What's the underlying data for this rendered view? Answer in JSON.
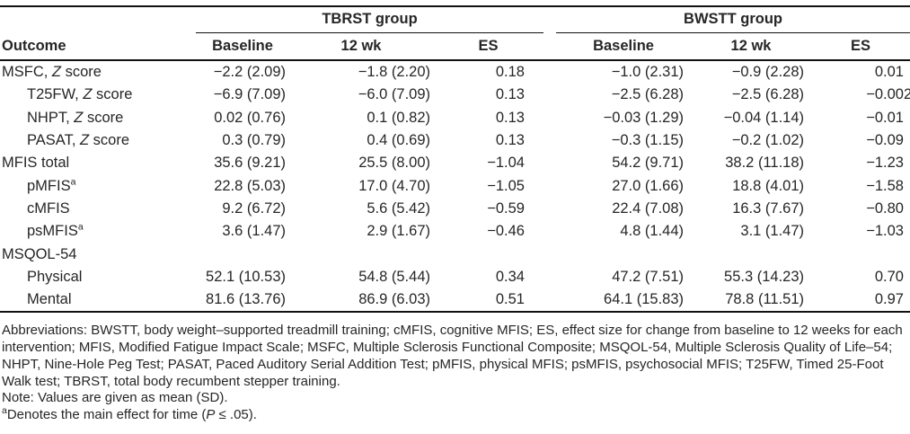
{
  "table": {
    "groups": [
      {
        "label": "TBRST group"
      },
      {
        "label": "BWSTT group"
      }
    ],
    "col_headers": {
      "outcome": "Outcome",
      "baseline": "Baseline",
      "wk12": "12 wk",
      "es": "ES"
    },
    "rows": [
      {
        "indent": false,
        "pre": "MSFC, ",
        "it": "Z",
        "post": " score",
        "sup": "",
        "cells": [
          "−2.2 (2.09)",
          "−1.8 (2.20)",
          "0.18",
          "−1.0 (2.31)",
          "−0.9 (2.28)",
          "0.01"
        ]
      },
      {
        "indent": true,
        "pre": "T25FW, ",
        "it": "Z",
        "post": " score",
        "sup": "",
        "cells": [
          "−6.9 (7.09)",
          "−6.0 (7.09)",
          "0.13",
          "−2.5 (6.28)",
          "−2.5 (6.28)",
          "−0.002"
        ]
      },
      {
        "indent": true,
        "pre": "NHPT, ",
        "it": "Z",
        "post": " score",
        "sup": "",
        "cells": [
          "0.02 (0.76)",
          "0.1 (0.82)",
          "0.13",
          "−0.03 (1.29)",
          "−0.04 (1.14)",
          "−0.01"
        ]
      },
      {
        "indent": true,
        "pre": "PASAT, ",
        "it": "Z",
        "post": " score",
        "sup": "",
        "cells": [
          "0.3 (0.79)",
          "0.4 (0.69)",
          "0.13",
          "−0.3 (1.15)",
          "−0.2 (1.02)",
          "−0.09"
        ]
      },
      {
        "indent": false,
        "pre": "MFIS total",
        "it": "",
        "post": "",
        "sup": "",
        "cells": [
          "35.6 (9.21)",
          "25.5 (8.00)",
          "−1.04",
          "54.2 (9.71)",
          "38.2 (11.18)",
          "−1.23"
        ]
      },
      {
        "indent": true,
        "pre": "pMFIS",
        "it": "",
        "post": "",
        "sup": "a",
        "cells": [
          "22.8 (5.03)",
          "17.0 (4.70)",
          "−1.05",
          "27.0 (1.66)",
          "18.8 (4.01)",
          "−1.58"
        ]
      },
      {
        "indent": true,
        "pre": "cMFIS",
        "it": "",
        "post": "",
        "sup": "",
        "cells": [
          "9.2 (6.72)",
          "5.6 (5.42)",
          "−0.59",
          "22.4 (7.08)",
          "16.3 (7.67)",
          "−0.80"
        ]
      },
      {
        "indent": true,
        "pre": "psMFIS",
        "it": "",
        "post": "",
        "sup": "a",
        "cells": [
          "3.6 (1.47)",
          "2.9 (1.67)",
          "−0.46",
          "4.8 (1.44)",
          "3.1 (1.47)",
          "−1.03"
        ]
      },
      {
        "indent": false,
        "pre": "MSQOL-54",
        "it": "",
        "post": "",
        "sup": "",
        "cells": [
          "",
          "",
          "",
          "",
          "",
          ""
        ]
      },
      {
        "indent": true,
        "pre": "Physical",
        "it": "",
        "post": "",
        "sup": "",
        "cells": [
          "52.1 (10.53)",
          "54.8 (5.44)",
          "0.34",
          "47.2 (7.51)",
          "55.3 (14.23)",
          "0.70"
        ]
      },
      {
        "indent": true,
        "pre": "Mental",
        "it": "",
        "post": "",
        "sup": "",
        "cells": [
          "81.6 (13.76)",
          "86.9 (6.03)",
          "0.51",
          "64.1 (15.83)",
          "78.8 (11.51)",
          "0.97"
        ]
      }
    ]
  },
  "footnotes": {
    "abbreviations": "Abbreviations: BWSTT, body weight–supported treadmill training; cMFIS, cognitive MFIS; ES, effect size for change from baseline to 12 weeks for each intervention; MFIS, Modified Fatigue Impact Scale; MSFC, Multiple Sclerosis Functional Composite; MSQOL-54, Multiple Sclerosis Quality of Life–54; NHPT, Nine-Hole Peg Test; PASAT, Paced Auditory Serial Addition Test; pMFIS, physical MFIS; psMFIS, psychosocial MFIS; T25FW, Timed 25-Foot Walk test; TBRST, total body recumbent stepper training.",
    "note": "Note: Values are given as mean (SD).",
    "time_effect": {
      "sup": "a",
      "pre": "Denotes the main effect for time (",
      "italic": "P",
      "post": " ≤ .05)."
    }
  }
}
